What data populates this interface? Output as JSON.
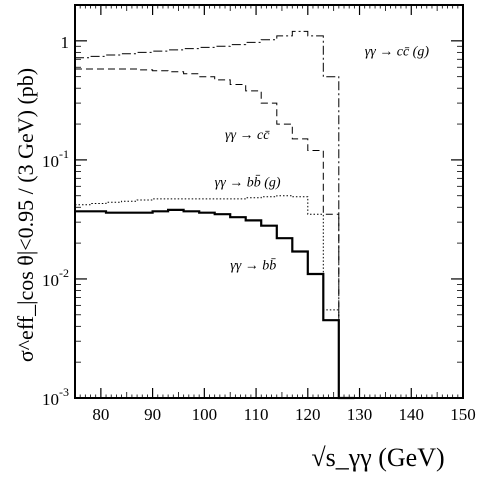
{
  "chart_data": {
    "type": "line",
    "title": "",
    "xlabel": "√s_γγ (GeV)",
    "ylabel": "σ^eff_|cos θ|<0.95 / (3 GeV) (pb)",
    "xlim": [
      75,
      150
    ],
    "ylim": [
      0.001,
      2
    ],
    "yscale": "log",
    "grid": false,
    "legend": "none",
    "x_ticks": [
      "80",
      "90",
      "100",
      "110",
      "120",
      "130",
      "140",
      "150"
    ],
    "y_ticks": [
      "1",
      "10⁻¹",
      "10⁻²",
      "10⁻³"
    ],
    "bin_edges": [
      75,
      78,
      81,
      84,
      87,
      90,
      93,
      96,
      99,
      102,
      105,
      108,
      111,
      114,
      117,
      120,
      123,
      126,
      129
    ],
    "series": [
      {
        "name": "γγ → cc̄ (g)",
        "style": "dash-dot",
        "values": [
          0.72,
          0.74,
          0.76,
          0.78,
          0.8,
          0.82,
          0.84,
          0.86,
          0.88,
          0.9,
          0.93,
          0.97,
          1.02,
          1.1,
          1.2,
          1.1,
          0.5,
          0.0009
        ]
      },
      {
        "name": "γγ → cc̄",
        "style": "dashed",
        "values": [
          0.58,
          0.58,
          0.58,
          0.58,
          0.57,
          0.56,
          0.55,
          0.53,
          0.5,
          0.47,
          0.43,
          0.38,
          0.3,
          0.2,
          0.15,
          0.12,
          0.035,
          0.0003
        ]
      },
      {
        "name": "γγ → bb̄ (g)",
        "style": "dotted",
        "values": [
          0.042,
          0.043,
          0.044,
          0.045,
          0.046,
          0.047,
          0.047,
          0.047,
          0.047,
          0.047,
          0.047,
          0.048,
          0.049,
          0.05,
          0.049,
          0.035,
          0.0055,
          0.001
        ]
      },
      {
        "name": "γγ → bb̄",
        "style": "solid",
        "values": [
          0.037,
          0.037,
          0.036,
          0.036,
          0.036,
          0.037,
          0.038,
          0.037,
          0.036,
          0.035,
          0.033,
          0.031,
          0.028,
          0.022,
          0.017,
          0.011,
          0.0045,
          0.0009
        ]
      }
    ],
    "annotations": [
      {
        "series": 0,
        "text": "γγ → cc̄ (g)",
        "x": 131,
        "y": 0.75
      },
      {
        "series": 1,
        "text": "γγ → cc̄",
        "x": 104,
        "y": 0.15
      },
      {
        "series": 2,
        "text": "γγ → bb̄ (g)",
        "x": 102,
        "y": 0.06
      },
      {
        "series": 3,
        "text": "γγ → bb̄",
        "x": 105,
        "y": 0.012
      }
    ]
  }
}
